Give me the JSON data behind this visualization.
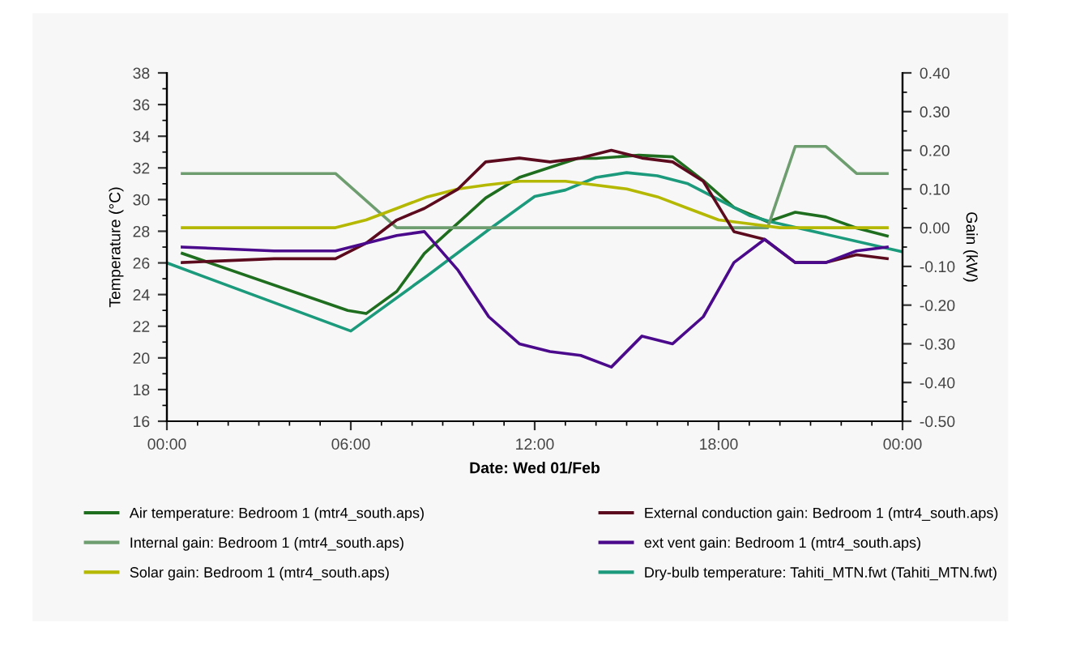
{
  "chart_data": {
    "type": "line",
    "xlabel": "Date: Wed 01/Feb",
    "ylabel": "Temperature (°C)",
    "y2label": "Gain (kW)",
    "xlim": [
      0,
      24
    ],
    "ylim": [
      16,
      38
    ],
    "y2lim": [
      -0.5,
      0.4
    ],
    "xticks": [
      {
        "value": 0,
        "label": "00:00"
      },
      {
        "value": 1,
        "label": null
      },
      {
        "value": 2,
        "label": null
      },
      {
        "value": 3,
        "label": null
      },
      {
        "value": 4,
        "label": null
      },
      {
        "value": 5,
        "label": null
      },
      {
        "value": 6,
        "label": "06:00"
      },
      {
        "value": 7,
        "label": null
      },
      {
        "value": 8,
        "label": null
      },
      {
        "value": 9,
        "label": null
      },
      {
        "value": 10,
        "label": null
      },
      {
        "value": 11,
        "label": null
      },
      {
        "value": 12,
        "label": "12:00"
      },
      {
        "value": 13,
        "label": null
      },
      {
        "value": 14,
        "label": null
      },
      {
        "value": 15,
        "label": null
      },
      {
        "value": 16,
        "label": null
      },
      {
        "value": 17,
        "label": null
      },
      {
        "value": 18,
        "label": "18:00"
      },
      {
        "value": 19,
        "label": null
      },
      {
        "value": 20,
        "label": null
      },
      {
        "value": 21,
        "label": null
      },
      {
        "value": 22,
        "label": null
      },
      {
        "value": 23,
        "label": null
      },
      {
        "value": 24,
        "label": "00:00"
      }
    ],
    "yticks": [
      16,
      {
        "value": 17,
        "label": null
      },
      18,
      {
        "value": 19,
        "label": null
      },
      20,
      {
        "value": 21,
        "label": null
      },
      22,
      {
        "value": 23,
        "label": null
      },
      24,
      {
        "value": 25,
        "label": null
      },
      26,
      {
        "value": 27,
        "label": null
      },
      28,
      {
        "value": 29,
        "label": null
      },
      30,
      {
        "value": 31,
        "label": null
      },
      32,
      {
        "value": 33,
        "label": null
      },
      34,
      {
        "value": 35,
        "label": null
      },
      36,
      {
        "value": 37,
        "label": null
      },
      38
    ],
    "y2ticks": [
      {
        "value": -0.5,
        "label": "-0.50"
      },
      {
        "value": -0.45,
        "label": null
      },
      {
        "value": -0.4,
        "label": "-0.40"
      },
      {
        "value": -0.35,
        "label": null
      },
      {
        "value": -0.3,
        "label": "-0.30"
      },
      {
        "value": -0.25,
        "label": null
      },
      {
        "value": -0.2,
        "label": "-0.20"
      },
      {
        "value": -0.15,
        "label": null
      },
      {
        "value": -0.1,
        "label": "-0.10"
      },
      {
        "value": -0.05,
        "label": null
      },
      {
        "value": 0,
        "label": "0.00"
      },
      {
        "value": 0.05,
        "label": null
      },
      {
        "value": 0.1,
        "label": "0.10"
      },
      {
        "value": 0.15,
        "label": null
      },
      {
        "value": 0.2,
        "label": "0.20"
      },
      {
        "value": 0.25,
        "label": null
      },
      {
        "value": 0.3,
        "label": "0.30"
      },
      {
        "value": 0.35,
        "label": null
      },
      {
        "value": 0.4,
        "label": "0.40"
      }
    ],
    "grid": false,
    "legend": "bottom",
    "marker": "none",
    "line_style": "solid",
    "series": [
      {
        "name": "Air temperature: Bedroom 1 (mtr4_south.aps)",
        "color": "#1f6e1f",
        "x": [
          0.5,
          5.9,
          6.5,
          7.5,
          8.4,
          10.4,
          11.5,
          13.4,
          14,
          15.4,
          16.5,
          17.5,
          18.5,
          19.6,
          20.5,
          21.5,
          22.5,
          23.5
        ],
        "values": [
          26.6,
          23.0,
          22.8,
          24.2,
          26.6,
          30.1,
          31.4,
          32.6,
          32.6,
          32.8,
          32.7,
          31.2,
          29.5,
          28.6,
          29.2,
          28.9,
          28.2,
          27.7
        ]
      },
      {
        "name": "Internal gain: Bedroom 1 (mtr4_south.aps)",
        "color": "#6e9e70",
        "axis": "y2",
        "x": [
          0.5,
          5.5,
          7.5,
          19.6,
          20.5,
          21.5,
          22.5,
          23.5
        ],
        "values": [
          0.14,
          0.14,
          0.0,
          0.0,
          0.21,
          0.21,
          0.14,
          0.14
        ]
      },
      {
        "name": "Solar gain: Bedroom 1 (mtr4_south.aps)",
        "color": "#b5b800",
        "axis": "y2",
        "x": [
          0.5,
          5.5,
          6.5,
          7.5,
          8.5,
          9.5,
          10.4,
          11.5,
          12.5,
          13,
          14,
          15,
          16,
          17,
          18,
          19,
          20,
          23.5
        ],
        "values": [
          0.0,
          0.0,
          0.02,
          0.05,
          0.08,
          0.1,
          0.11,
          0.12,
          0.12,
          0.12,
          0.11,
          0.1,
          0.08,
          0.05,
          0.02,
          0.01,
          0.0,
          0.0
        ]
      },
      {
        "name": "External conduction gain: Bedroom 1 (mtr4_south.aps)",
        "color": "#5c0a1e",
        "axis": "y2",
        "x": [
          0.5,
          3.5,
          5.5,
          6.5,
          7.5,
          8.4,
          9.5,
          10.4,
          11.5,
          12.5,
          13.5,
          14.5,
          15.5,
          16.5,
          17.5,
          18.5,
          19.5,
          20.5,
          21.5,
          22.5,
          23.5
        ],
        "values": [
          -0.09,
          -0.08,
          -0.08,
          -0.04,
          0.02,
          0.05,
          0.1,
          0.17,
          0.18,
          0.17,
          0.18,
          0.2,
          0.18,
          0.17,
          0.12,
          -0.01,
          -0.03,
          -0.09,
          -0.09,
          -0.07,
          -0.08
        ]
      },
      {
        "name": "ext vent gain: Bedroom 1 (mtr4_south.aps)",
        "color": "#4b0a8c",
        "axis": "y2",
        "x": [
          0.5,
          3.5,
          5.5,
          6.5,
          7.5,
          8.4,
          9.5,
          10.5,
          11.5,
          12.5,
          13.5,
          14.5,
          15.5,
          16.5,
          17.5,
          18.5,
          19.5,
          20.5,
          21.5,
          22.5,
          23.5
        ],
        "values": [
          -0.05,
          -0.06,
          -0.06,
          -0.04,
          -0.02,
          -0.01,
          -0.11,
          -0.23,
          -0.3,
          -0.32,
          -0.33,
          -0.36,
          -0.28,
          -0.3,
          -0.23,
          -0.09,
          -0.03,
          -0.09,
          -0.09,
          -0.06,
          -0.05
        ]
      },
      {
        "name": "Dry-bulb temperature: Tahiti_MTN.fwt (Tahiti_MTN.fwt)",
        "color": "#1c9a7c",
        "x": [
          0,
          6,
          8.5,
          10.5,
          12,
          13,
          14,
          15,
          16,
          17,
          18,
          19,
          19.7,
          24
        ],
        "values": [
          26.0,
          21.7,
          25.2,
          28.1,
          30.2,
          30.6,
          31.4,
          31.7,
          31.5,
          31.0,
          30.0,
          29.0,
          28.6,
          26.7
        ]
      }
    ]
  }
}
